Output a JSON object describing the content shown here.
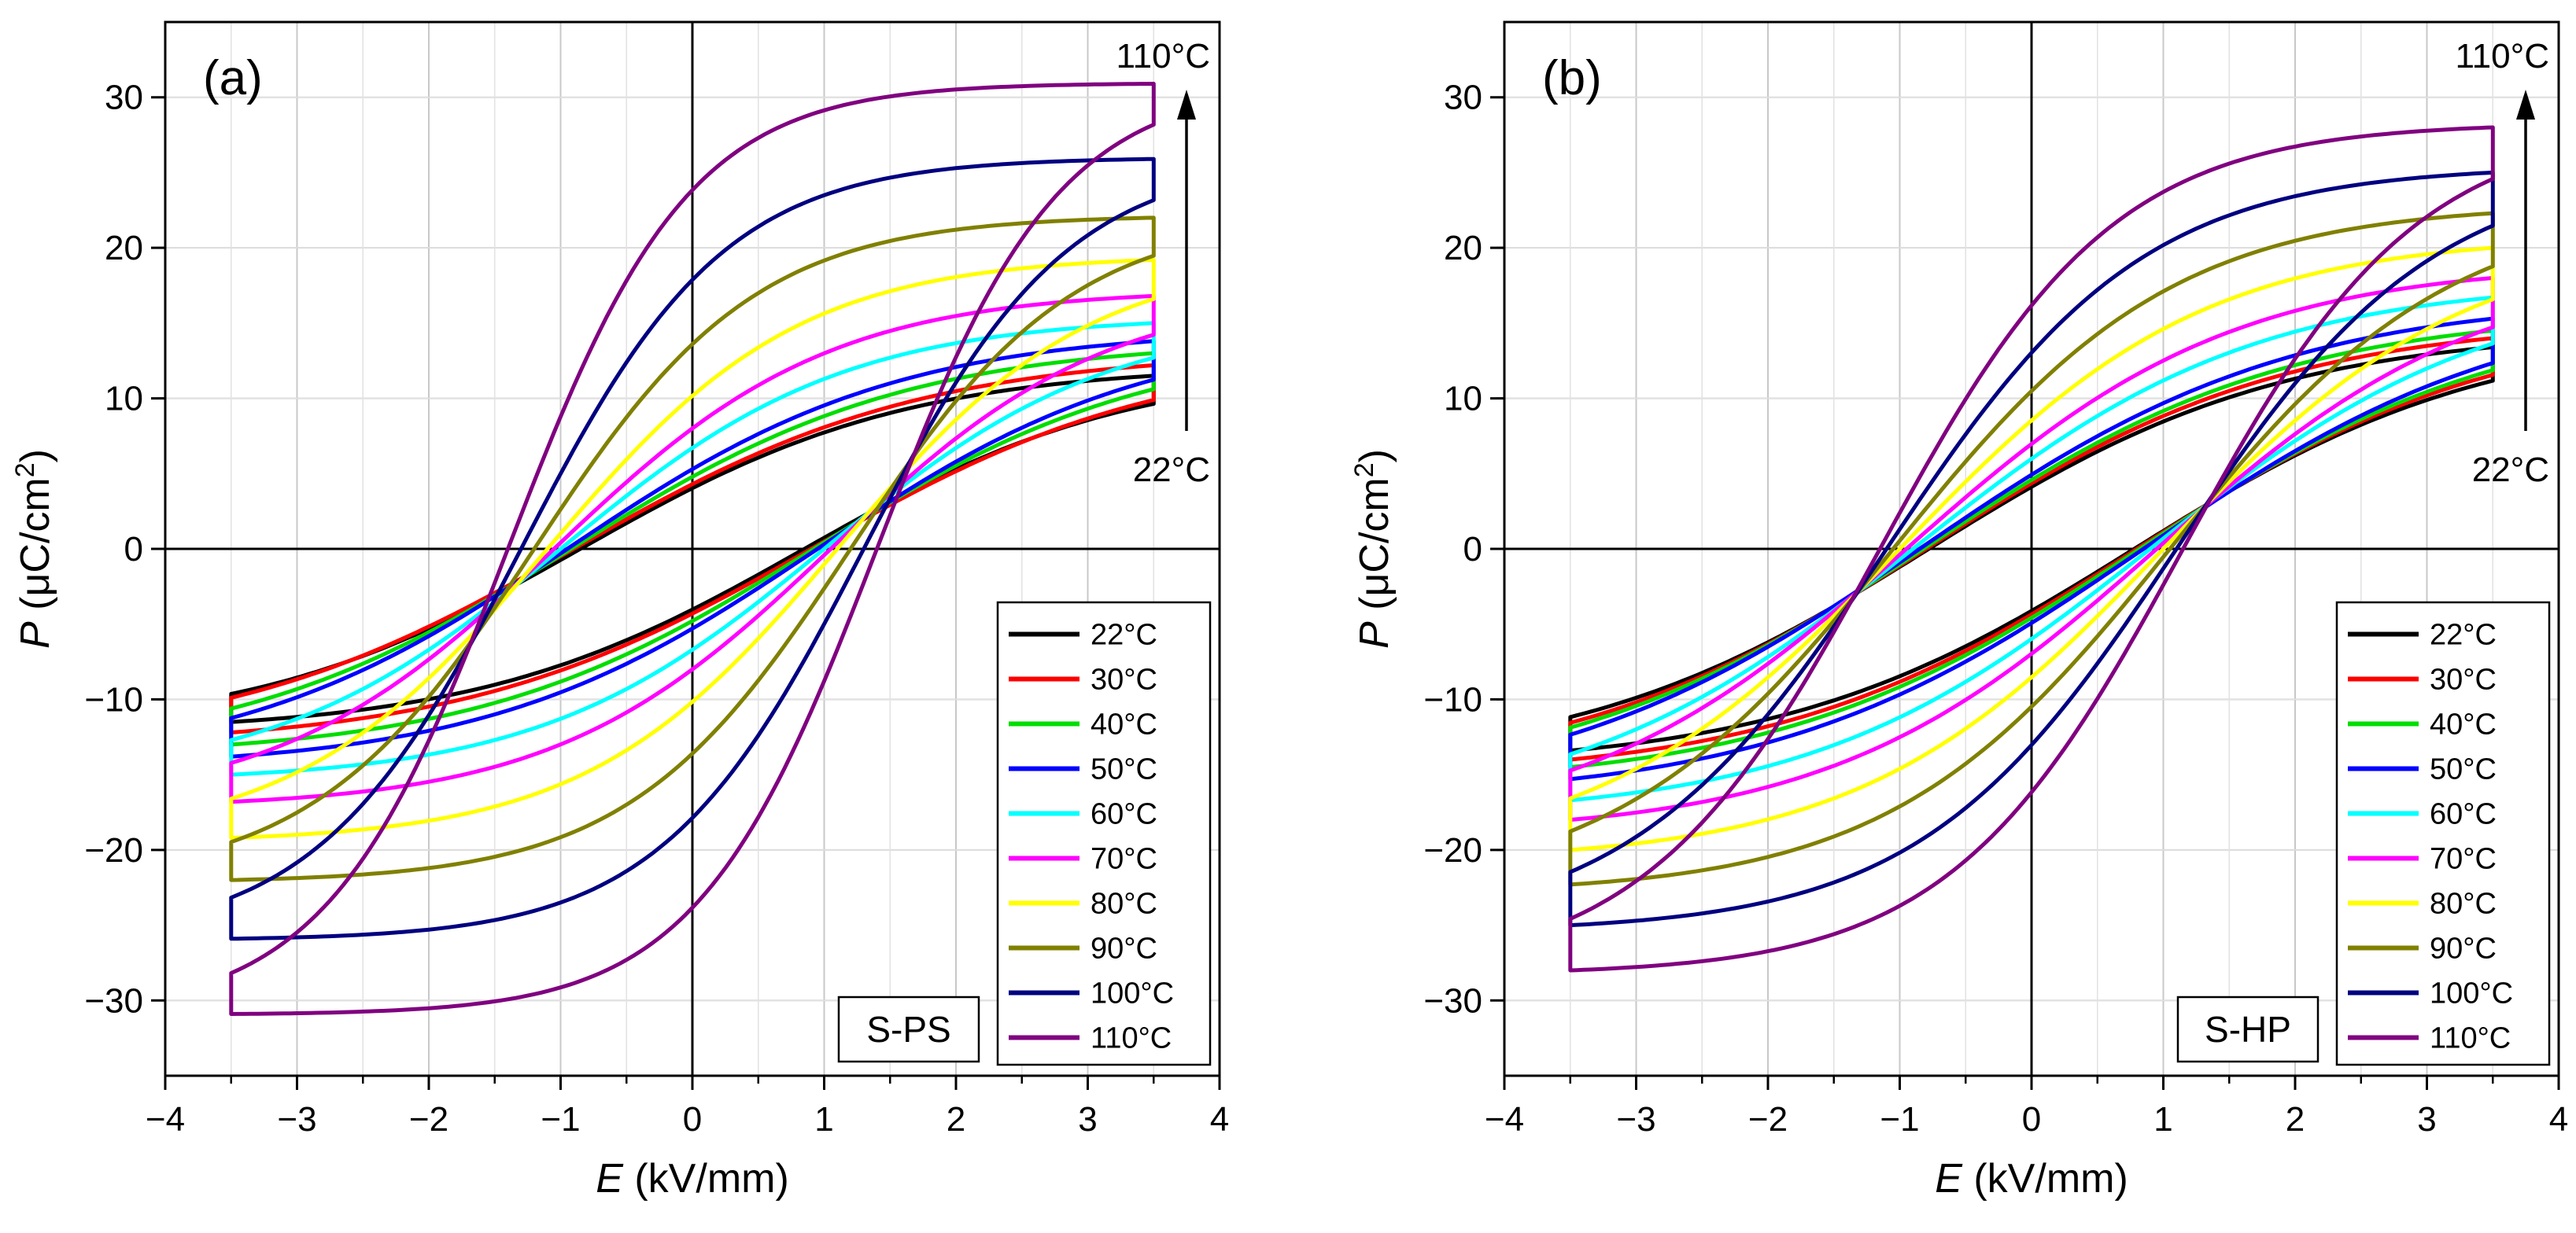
{
  "chart_data": [
    {
      "type": "line",
      "panel_label": "(a)",
      "sample_label": "S-PS",
      "xlabel_var": "E",
      "xlabel_unit": " (kV/mm)",
      "ylabel_var": "P",
      "ylabel_unit": " (μC/cm",
      "ylabel_sup": "2",
      "ylabel_close": ")",
      "xlim": [
        -4,
        4
      ],
      "ylim": [
        -35,
        35
      ],
      "xticks": [
        -4,
        -3,
        -2,
        -1,
        0,
        1,
        2,
        3,
        4
      ],
      "yticks": [
        -30,
        -20,
        -10,
        0,
        10,
        20,
        30
      ],
      "xtick_labels": [
        "−4",
        "−3",
        "−2",
        "−1",
        "0",
        "1",
        "2",
        "3",
        "4"
      ],
      "ytick_labels": [
        "−30",
        "−20",
        "−10",
        "0",
        "10",
        "20",
        "30"
      ],
      "grid": true,
      "legend_position": "bottom-right",
      "arrow_top_label": "110°C",
      "arrow_bottom_label": "22°C",
      "field_max": 3.5,
      "series": [
        {
          "name": "22°C",
          "color": "#000000",
          "pmax": 11.5,
          "pr": 3.8,
          "ec": 0.85
        },
        {
          "name": "30°C",
          "color": "#ff0000",
          "pmax": 12.2,
          "pr": 4.0,
          "ec": 0.9
        },
        {
          "name": "40°C",
          "color": "#00dd00",
          "pmax": 13.0,
          "pr": 4.5,
          "ec": 0.92
        },
        {
          "name": "50°C",
          "color": "#0000ff",
          "pmax": 13.8,
          "pr": 5.0,
          "ec": 0.95
        },
        {
          "name": "60°C",
          "color": "#00ffff",
          "pmax": 15.0,
          "pr": 6.5,
          "ec": 1.0
        },
        {
          "name": "70°C",
          "color": "#ff00ff",
          "pmax": 16.8,
          "pr": 7.8,
          "ec": 1.05
        },
        {
          "name": "80°C",
          "color": "#ffff00",
          "pmax": 19.2,
          "pr": 10.0,
          "ec": 1.1
        },
        {
          "name": "90°C",
          "color": "#808000",
          "pmax": 22.0,
          "pr": 13.5,
          "ec": 1.2
        },
        {
          "name": "100°C",
          "color": "#000080",
          "pmax": 25.9,
          "pr": 17.8,
          "ec": 1.3
        },
        {
          "name": "110°C",
          "color": "#800080",
          "pmax": 30.9,
          "pr": 23.8,
          "ec": 1.4
        }
      ]
    },
    {
      "type": "line",
      "panel_label": "(b)",
      "sample_label": "S-HP",
      "xlabel_var": "E",
      "xlabel_unit": " (kV/mm)",
      "ylabel_var": "P",
      "ylabel_unit": " (μC/cm",
      "ylabel_sup": "2",
      "ylabel_close": ")",
      "xlim": [
        -4,
        4
      ],
      "ylim": [
        -35,
        35
      ],
      "xticks": [
        -4,
        -3,
        -2,
        -1,
        0,
        1,
        2,
        3,
        4
      ],
      "yticks": [
        -30,
        -20,
        -10,
        0,
        10,
        20,
        30
      ],
      "xtick_labels": [
        "−4",
        "−3",
        "−2",
        "−1",
        "0",
        "1",
        "2",
        "3",
        "4"
      ],
      "ytick_labels": [
        "−30",
        "−20",
        "−10",
        "0",
        "10",
        "20",
        "30"
      ],
      "grid": true,
      "legend_position": "bottom-right",
      "arrow_top_label": "110°C",
      "arrow_bottom_label": "22°C",
      "field_max": 3.5,
      "series": [
        {
          "name": "22°C",
          "color": "#000000",
          "pmax": 13.4,
          "pr": 3.8,
          "ec": 0.78
        },
        {
          "name": "30°C",
          "color": "#ff0000",
          "pmax": 14.0,
          "pr": 4.0,
          "ec": 0.8
        },
        {
          "name": "40°C",
          "color": "#00dd00",
          "pmax": 14.5,
          "pr": 4.2,
          "ec": 0.82
        },
        {
          "name": "50°C",
          "color": "#0000ff",
          "pmax": 15.3,
          "pr": 4.5,
          "ec": 0.85
        },
        {
          "name": "60°C",
          "color": "#00ffff",
          "pmax": 16.7,
          "pr": 5.6,
          "ec": 0.9
        },
        {
          "name": "70°C",
          "color": "#ff00ff",
          "pmax": 18.0,
          "pr": 6.6,
          "ec": 0.95
        },
        {
          "name": "80°C",
          "color": "#ffff00",
          "pmax": 20.0,
          "pr": 8.2,
          "ec": 1.0
        },
        {
          "name": "90°C",
          "color": "#808000",
          "pmax": 22.3,
          "pr": 10.2,
          "ec": 1.05
        },
        {
          "name": "100°C",
          "color": "#000080",
          "pmax": 25.0,
          "pr": 12.8,
          "ec": 1.1
        },
        {
          "name": "110°C",
          "color": "#800080",
          "pmax": 28.0,
          "pr": 16.0,
          "ec": 1.15
        }
      ]
    }
  ]
}
